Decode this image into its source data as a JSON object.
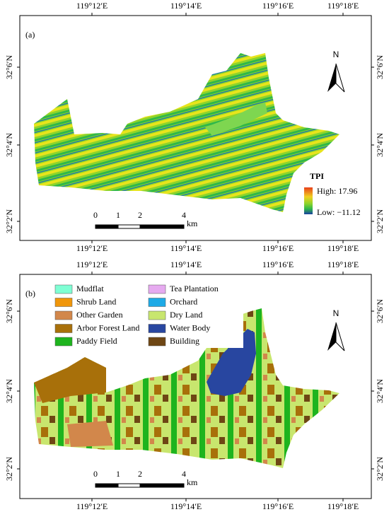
{
  "panels": [
    {
      "label": "(a)",
      "top_ticks": [
        "119°12′E",
        "119°14′E",
        "119°16′E",
        "119°18′E"
      ],
      "bottom_ticks": [
        "119°12′E",
        "119°14′E",
        "119°16′E",
        "119°18′E"
      ],
      "left_ticks": [
        "32°6′N",
        "32°4′N",
        "32°2′N"
      ],
      "right_ticks": [
        "32°6′N",
        "32°4′N",
        "32°2′N"
      ],
      "north": "N",
      "scale": {
        "ticks": [
          "0",
          "1",
          "2",
          "4"
        ],
        "unit": "km"
      },
      "legend": {
        "title": "TPI",
        "high": "High: 17.96",
        "low": "Low: −11.12"
      }
    },
    {
      "label": "(b)",
      "top_ticks": [
        "119°12′E",
        "119°14′E",
        "119°16′E",
        "119°18′E"
      ],
      "bottom_ticks": [
        "119°12′E",
        "119°14′E",
        "119°16′E",
        "119°18′E"
      ],
      "left_ticks": [
        "32°6′N",
        "32°4′N",
        "32°2′N"
      ],
      "right_ticks": [
        "32°6′N",
        "32°4′N",
        "32°2′N"
      ],
      "north": "N",
      "scale": {
        "ticks": [
          "0",
          "1",
          "2",
          "4"
        ],
        "unit": "km"
      },
      "legend": {
        "items": [
          {
            "name": "Mudflat",
            "color": "#7fffd4"
          },
          {
            "name": "Shrub Land",
            "color": "#f0960a"
          },
          {
            "name": "Other Garden",
            "color": "#d2874b"
          },
          {
            "name": "Arbor Forest Land",
            "color": "#a8700a"
          },
          {
            "name": "Paddy Field",
            "color": "#1eb41e"
          },
          {
            "name": "Tea Plantation",
            "color": "#e6aaf0"
          },
          {
            "name": "Orchard",
            "color": "#1eaae6"
          },
          {
            "name": "Dry Land",
            "color": "#c8e66e"
          },
          {
            "name": "Water Body",
            "color": "#2846a0"
          },
          {
            "name": "Building",
            "color": "#6e4614"
          }
        ]
      }
    }
  ]
}
